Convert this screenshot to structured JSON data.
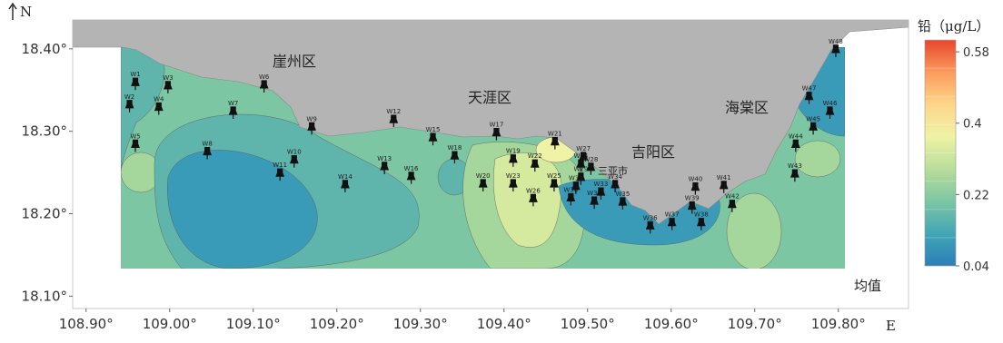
{
  "map": {
    "north_label": "N",
    "east_label": "E",
    "note": "均值",
    "districts": [
      "崖州区",
      "天涯区",
      "吉阳区",
      "海棠区",
      "三亚市"
    ],
    "xlim": [
      108.884,
      109.884
    ],
    "ylim": [
      18.085,
      18.435
    ],
    "xticks": [
      {
        "value": 108.9,
        "label": "108.90°"
      },
      {
        "value": 109.0,
        "label": "109.00°"
      },
      {
        "value": 109.1,
        "label": "109.10°"
      },
      {
        "value": 109.2,
        "label": "109.20°"
      },
      {
        "value": 109.3,
        "label": "109.30°"
      },
      {
        "value": 109.4,
        "label": "109.40°"
      },
      {
        "value": 109.5,
        "label": "109.50°"
      },
      {
        "value": 109.6,
        "label": "109.60°"
      },
      {
        "value": 109.7,
        "label": "109.70°"
      },
      {
        "value": 109.8,
        "label": "109.80°"
      }
    ],
    "yticks": [
      {
        "value": 18.1,
        "label": "18.10°"
      },
      {
        "value": 18.2,
        "label": "18.20°"
      },
      {
        "value": 18.3,
        "label": "18.30°"
      },
      {
        "value": 18.4,
        "label": "18.40°"
      }
    ],
    "legend": {
      "title": "铅（μg/L）",
      "range": [
        0.04,
        0.61
      ],
      "ticks": [
        0.58,
        0.4,
        0.22,
        0.04
      ],
      "colors": [
        "#2c7fb8",
        "#41a6b5",
        "#7cc6a3",
        "#b8dd9a",
        "#eef3a5",
        "#fdd68a",
        "#fb9b5c",
        "#e7462e"
      ]
    },
    "stations": [
      {
        "label": "W1",
        "lon": 108.959,
        "lat": 18.35
      },
      {
        "label": "W2",
        "lon": 108.952,
        "lat": 18.323
      },
      {
        "label": "W3",
        "lon": 108.998,
        "lat": 18.346
      },
      {
        "label": "W4",
        "lon": 108.987,
        "lat": 18.32
      },
      {
        "label": "W5",
        "lon": 108.959,
        "lat": 18.275
      },
      {
        "label": "W6",
        "lon": 109.113,
        "lat": 18.347
      },
      {
        "label": "W7",
        "lon": 109.076,
        "lat": 18.315
      },
      {
        "label": "W8",
        "lon": 109.045,
        "lat": 18.266
      },
      {
        "label": "W9",
        "lon": 109.17,
        "lat": 18.296
      },
      {
        "label": "W10",
        "lon": 109.149,
        "lat": 18.256
      },
      {
        "label": "W11",
        "lon": 109.132,
        "lat": 18.24
      },
      {
        "label": "W12",
        "lon": 109.268,
        "lat": 18.305
      },
      {
        "label": "W13",
        "lon": 109.257,
        "lat": 18.248
      },
      {
        "label": "W14",
        "lon": 109.21,
        "lat": 18.226
      },
      {
        "label": "W15",
        "lon": 109.315,
        "lat": 18.283
      },
      {
        "label": "W16",
        "lon": 109.289,
        "lat": 18.236
      },
      {
        "label": "W17",
        "lon": 109.391,
        "lat": 18.289
      },
      {
        "label": "W18",
        "lon": 109.341,
        "lat": 18.261
      },
      {
        "label": "W19",
        "lon": 109.411,
        "lat": 18.257
      },
      {
        "label": "W20",
        "lon": 109.375,
        "lat": 18.227
      },
      {
        "label": "W21",
        "lon": 109.461,
        "lat": 18.278
      },
      {
        "label": "W22",
        "lon": 109.437,
        "lat": 18.251
      },
      {
        "label": "W23",
        "lon": 109.411,
        "lat": 18.227
      },
      {
        "label": "W24",
        "lon": 109.492,
        "lat": 18.251
      },
      {
        "label": "W25",
        "lon": 109.46,
        "lat": 18.227
      },
      {
        "label": "W26",
        "lon": 109.435,
        "lat": 18.209
      },
      {
        "label": "W27",
        "lon": 109.495,
        "lat": 18.26
      },
      {
        "label": "W28",
        "lon": 109.504,
        "lat": 18.247
      },
      {
        "label": "W29",
        "lon": 109.492,
        "lat": 18.235
      },
      {
        "label": "W30",
        "lon": 109.48,
        "lat": 18.21
      },
      {
        "label": "W31",
        "lon": 109.486,
        "lat": 18.224
      },
      {
        "label": "W32",
        "lon": 109.508,
        "lat": 18.206
      },
      {
        "label": "W33",
        "lon": 109.516,
        "lat": 18.217
      },
      {
        "label": "W34",
        "lon": 109.533,
        "lat": 18.226
      },
      {
        "label": "W35",
        "lon": 109.542,
        "lat": 18.205
      },
      {
        "label": "W36",
        "lon": 109.575,
        "lat": 18.176
      },
      {
        "label": "W37",
        "lon": 109.601,
        "lat": 18.18
      },
      {
        "label": "W38",
        "lon": 109.636,
        "lat": 18.18
      },
      {
        "label": "W39",
        "lon": 109.625,
        "lat": 18.2
      },
      {
        "label": "W40",
        "lon": 109.629,
        "lat": 18.223
      },
      {
        "label": "W41",
        "lon": 109.663,
        "lat": 18.225
      },
      {
        "label": "W42",
        "lon": 109.673,
        "lat": 18.202
      },
      {
        "label": "W43",
        "lon": 109.748,
        "lat": 18.239
      },
      {
        "label": "W44",
        "lon": 109.749,
        "lat": 18.275
      },
      {
        "label": "W45",
        "lon": 109.77,
        "lat": 18.296
      },
      {
        "label": "W46",
        "lon": 109.79,
        "lat": 18.315
      },
      {
        "label": "W47",
        "lon": 109.765,
        "lat": 18.333
      },
      {
        "label": "W48",
        "lon": 109.797,
        "lat": 18.39
      }
    ]
  }
}
